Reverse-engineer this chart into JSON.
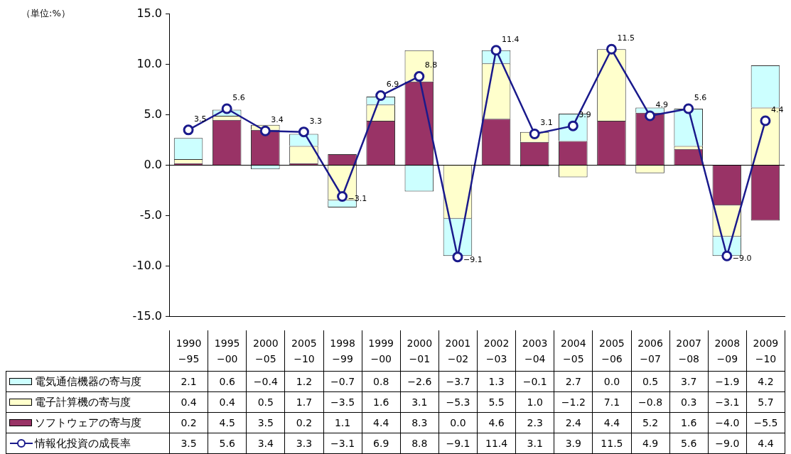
{
  "chart_data": {
    "type": "bar",
    "stacked": true,
    "categories": [
      "1990\n−95",
      "1995\n−00",
      "2000\n−05",
      "2005\n−10",
      "1998\n−99",
      "1999\n−00",
      "2000\n−01",
      "2001\n−02",
      "2002\n−03",
      "2003\n−04",
      "2004\n−05",
      "2005\n−06",
      "2006\n−07",
      "2007\n−08",
      "2008\n−09",
      "2009\n−10"
    ],
    "series": [
      {
        "name": "ソフトウェアの寄与度",
        "color": "#993366",
        "values": [
          0.2,
          4.5,
          3.5,
          0.2,
          1.1,
          4.4,
          8.3,
          0.0,
          4.6,
          2.3,
          2.4,
          4.4,
          5.2,
          1.6,
          -4.0,
          -5.5
        ],
        "value_labels": [
          "0.2",
          "4.5",
          "3.5",
          "0.2",
          "1.1",
          "4.4",
          "8.3",
          "0.0",
          "4.6",
          "2.3",
          "2.4",
          "4.4",
          "5.2",
          "1.6",
          "−4.0",
          "−5.5"
        ]
      },
      {
        "name": "電子計算機の寄与度",
        "color": "#ffffcc",
        "values": [
          0.4,
          0.4,
          0.5,
          1.7,
          -3.5,
          1.6,
          3.1,
          -5.3,
          5.5,
          1.0,
          -1.2,
          7.1,
          -0.8,
          0.3,
          -3.1,
          5.7
        ],
        "value_labels": [
          "0.4",
          "0.4",
          "0.5",
          "1.7",
          "−3.5",
          "1.6",
          "3.1",
          "−5.3",
          "5.5",
          "1.0",
          "−1.2",
          "7.1",
          "−0.8",
          "0.3",
          "−3.1",
          "5.7"
        ]
      },
      {
        "name": "電気通信機器の寄与度",
        "color": "#ccffff",
        "values": [
          2.1,
          0.6,
          -0.4,
          1.2,
          -0.7,
          0.8,
          -2.6,
          -3.7,
          1.3,
          -0.1,
          2.7,
          0.0,
          0.5,
          3.7,
          -1.9,
          4.2
        ],
        "value_labels": [
          "2.1",
          "0.6",
          "−0.4",
          "1.2",
          "−0.7",
          "0.8",
          "−2.6",
          "−3.7",
          "1.3",
          "−0.1",
          "2.7",
          "0.0",
          "0.5",
          "3.7",
          "−1.9",
          "4.2"
        ]
      },
      {
        "name": "情報化投資の成長率",
        "type": "line",
        "color": "#1a1a8c",
        "values": [
          3.5,
          5.6,
          3.4,
          3.3,
          -3.1,
          6.9,
          8.8,
          -9.1,
          11.4,
          3.1,
          3.9,
          11.5,
          4.9,
          5.6,
          -9.0,
          4.4
        ],
        "value_labels": [
          "3.5",
          "5.6",
          "3.4",
          "3.3",
          "−3.1",
          "6.9",
          "8.8",
          "−9.1",
          "11.4",
          "3.1",
          "3.9",
          "11.5",
          "4.9",
          "5.6",
          "−9.0",
          "4.4"
        ]
      }
    ],
    "ylim": [
      -15,
      15
    ],
    "yticks": [
      {
        "value": -15,
        "label": "-15.0"
      },
      {
        "value": -10,
        "label": "-10.0"
      },
      {
        "value": -5,
        "label": "-5.0"
      },
      {
        "value": 0,
        "label": "0.0"
      },
      {
        "value": 5,
        "label": "5.0"
      },
      {
        "value": 10,
        "label": "10.0"
      },
      {
        "value": 15,
        "label": "15.0"
      }
    ],
    "legend": "bottom left",
    "marker": "circle",
    "line_style": "solid",
    "annotations": [
      "（単位:%）"
    ]
  }
}
